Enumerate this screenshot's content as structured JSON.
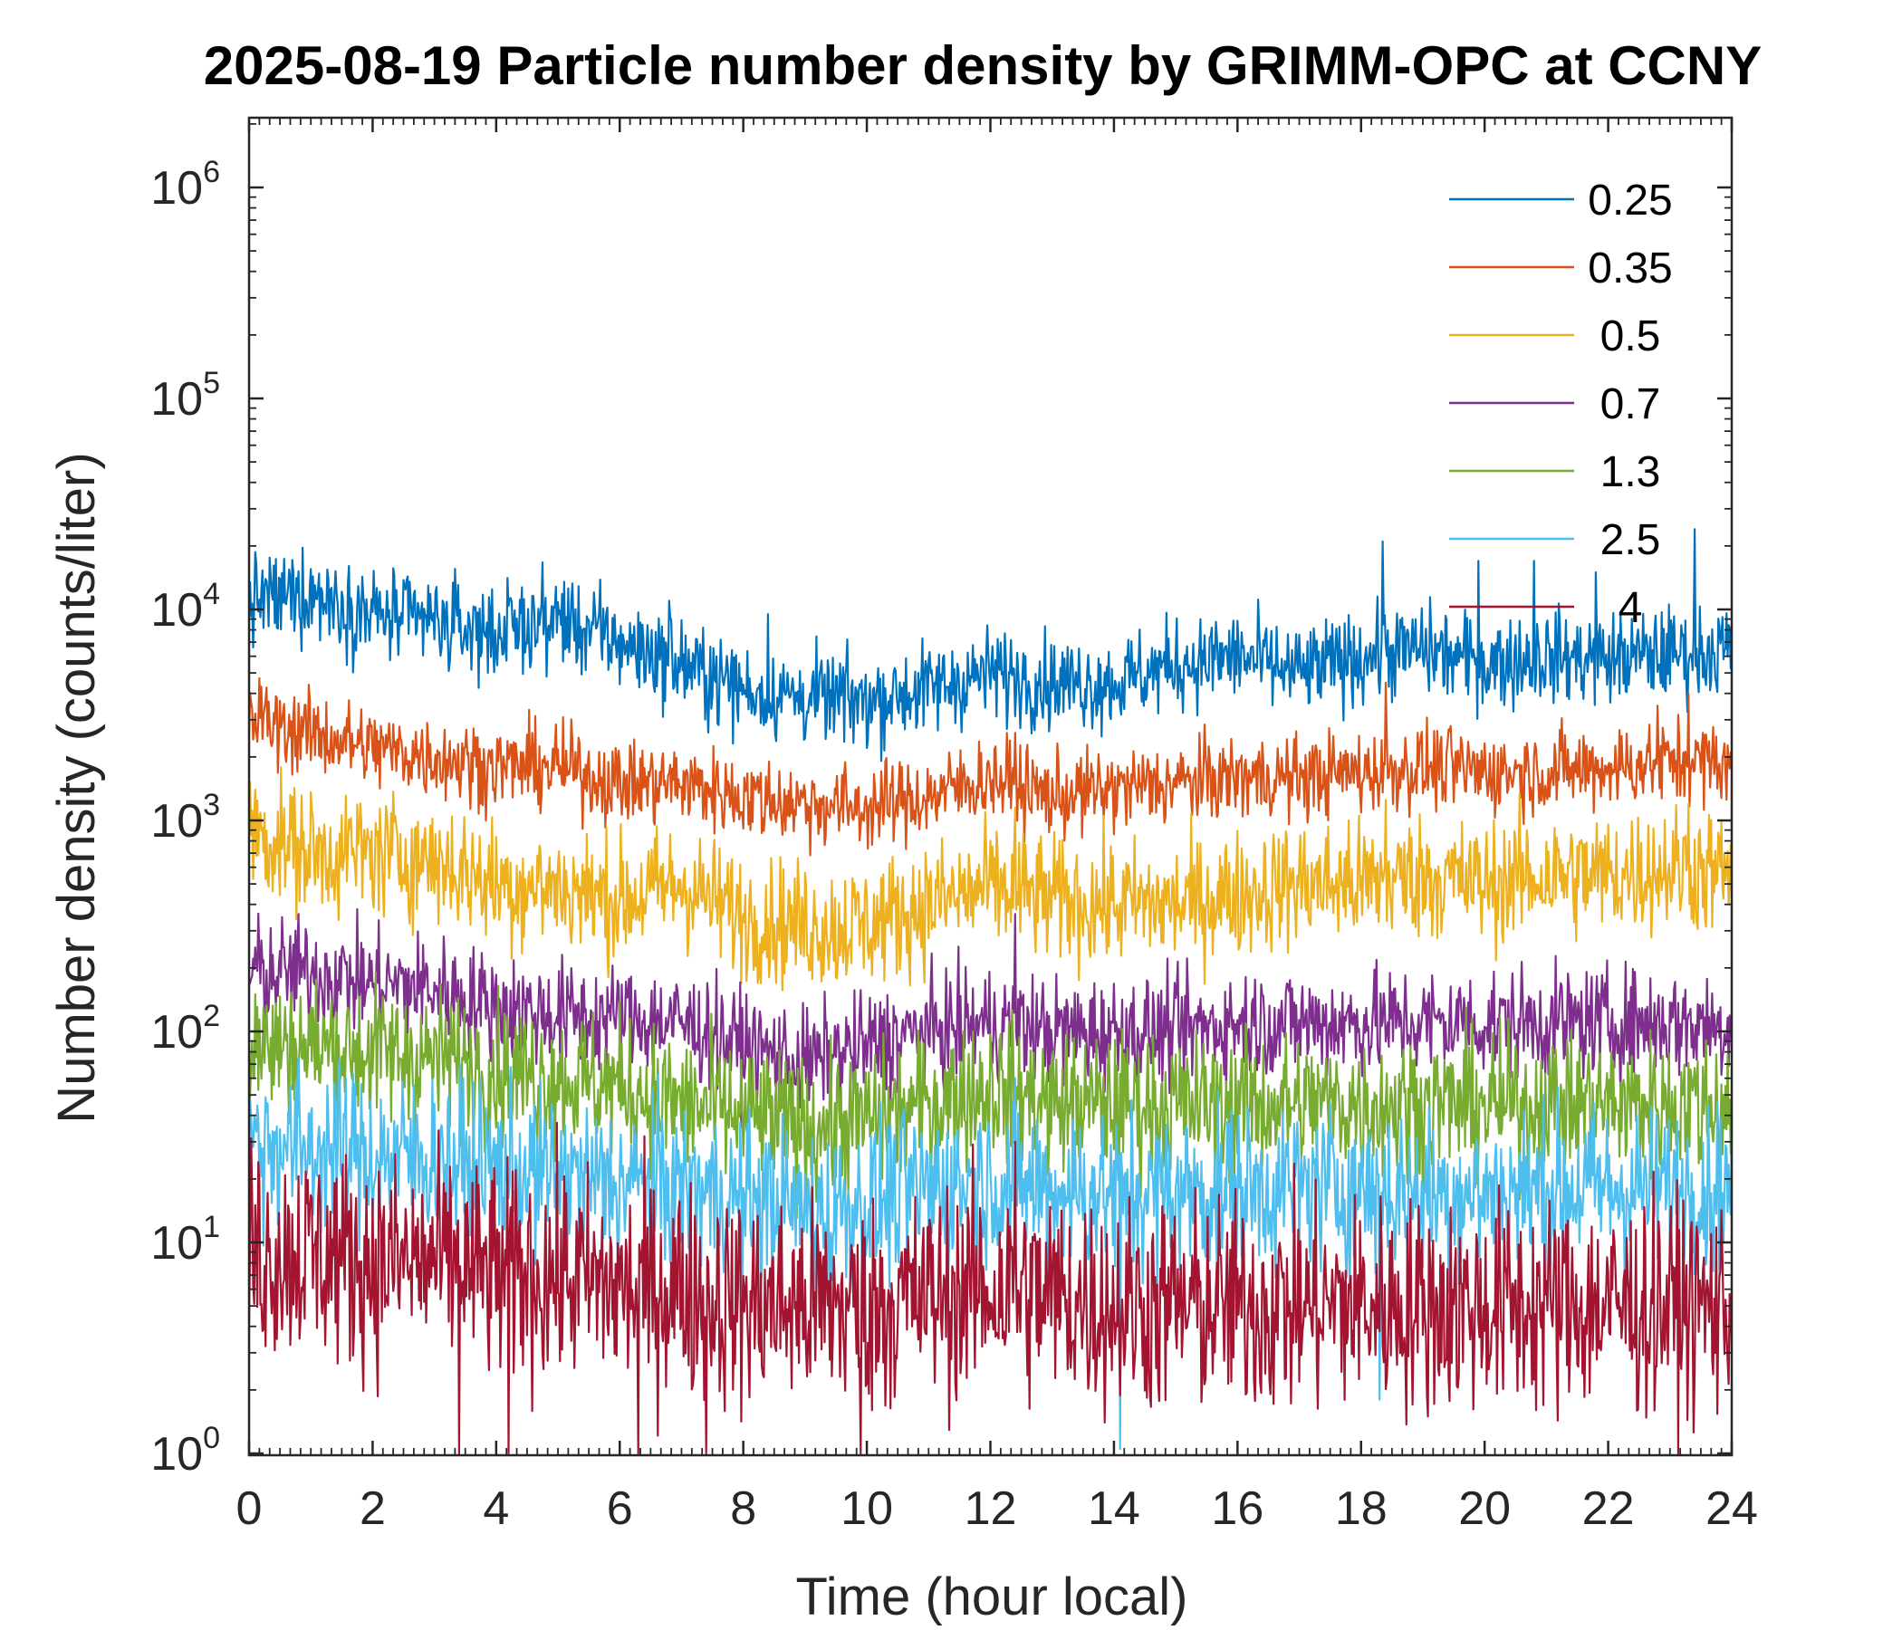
{
  "chart_data": {
    "type": "line",
    "title": "2025-08-19 Particle number density by GRIMM-OPC at CCNY",
    "xlabel": "Time (hour local)",
    "ylabel": "Number density (counts/liter)",
    "xlim": [
      0,
      24
    ],
    "ylim": [
      1,
      2000000
    ],
    "yscale": "log",
    "x_ticks": [
      0,
      2,
      4,
      6,
      8,
      10,
      12,
      14,
      16,
      18,
      20,
      22,
      24
    ],
    "y_ticks": [
      {
        "value": 1,
        "base": "10",
        "exponent": "0"
      },
      {
        "value": 10,
        "base": "10",
        "exponent": "1"
      },
      {
        "value": 100,
        "base": "10",
        "exponent": "2"
      },
      {
        "value": 1000,
        "base": "10",
        "exponent": "3"
      },
      {
        "value": 10000,
        "base": "10",
        "exponent": "4"
      },
      {
        "value": 100000,
        "base": "10",
        "exponent": "5"
      },
      {
        "value": 1000000,
        "base": "10",
        "exponent": "6"
      }
    ],
    "legend_position": "top-right",
    "x": [
      0,
      1,
      2,
      3,
      4,
      5,
      6,
      7,
      8,
      9,
      10,
      11,
      12,
      13,
      14,
      15,
      16,
      17,
      18,
      19,
      20,
      21,
      22,
      23,
      24
    ],
    "series": [
      {
        "name": "0.25",
        "color": "#0072BD",
        "values": [
          11000,
          12000,
          9500,
          8500,
          7800,
          9000,
          7000,
          5500,
          4200,
          3800,
          3700,
          4200,
          5000,
          4500,
          4500,
          5500,
          6000,
          5000,
          6000,
          6500,
          5500,
          6000,
          5800,
          6200,
          6500
        ],
        "noise": 0.11,
        "spikes": [
          [
            0.5,
            14000
          ],
          [
            2.9,
            13000
          ],
          [
            5.1,
            13500
          ],
          [
            6.8,
            11000
          ],
          [
            8.4,
            9500
          ],
          [
            15.4,
            9000
          ],
          [
            18.35,
            21000
          ],
          [
            19.9,
            17000
          ],
          [
            20.8,
            17000
          ],
          [
            21.8,
            15000
          ],
          [
            23.4,
            24000
          ]
        ]
      },
      {
        "name": "0.35",
        "color": "#D95319",
        "values": [
          3000,
          2600,
          2200,
          2000,
          1800,
          1800,
          1500,
          1500,
          1300,
          1200,
          1150,
          1300,
          1600,
          1300,
          1400,
          1500,
          1600,
          1600,
          1700,
          1800,
          1700,
          1700,
          1800,
          1900,
          1900
        ],
        "noise": 0.1,
        "spikes": [
          [
            0.2,
            4300
          ],
          [
            18.4,
            4500
          ],
          [
            22.8,
            3500
          ],
          [
            23.3,
            4000
          ],
          [
            12.4,
            2600
          ]
        ]
      },
      {
        "name": "0.5",
        "color": "#EDB120",
        "values": [
          900,
          700,
          700,
          650,
          500,
          480,
          420,
          500,
          350,
          320,
          320,
          400,
          480,
          420,
          400,
          400,
          450,
          500,
          500,
          550,
          500,
          550,
          550,
          600,
          550
        ],
        "noise": 0.15,
        "spikes": [
          [
            0.1,
            1400
          ],
          [
            12.4,
            1150
          ],
          [
            18.4,
            1250
          ],
          [
            17.8,
            1000
          ],
          [
            23.3,
            1200
          ],
          [
            9.5,
            180
          ]
        ]
      },
      {
        "name": "0.7",
        "color": "#7E2F8E",
        "values": [
          190,
          190,
          170,
          160,
          130,
          120,
          115,
          110,
          85,
          70,
          85,
          100,
          110,
          100,
          100,
          100,
          110,
          110,
          110,
          110,
          110,
          110,
          110,
          110,
          105
        ],
        "noise": 0.13,
        "spikes": [
          [
            0.2,
            270
          ],
          [
            12.4,
            360
          ]
        ]
      },
      {
        "name": "1.3",
        "color": "#77AC30",
        "values": [
          85,
          85,
          80,
          75,
          65,
          60,
          55,
          45,
          40,
          35,
          38,
          45,
          55,
          45,
          45,
          45,
          45,
          45,
          45,
          45,
          45,
          45,
          45,
          45,
          45
        ],
        "noise": 0.17,
        "spikes": [
          [
            0.1,
            150
          ]
        ]
      },
      {
        "name": "2.5",
        "color": "#4DBEEE",
        "values": [
          30,
          28,
          26,
          25,
          22,
          20,
          19,
          18,
          16,
          14,
          15,
          18,
          20,
          18,
          17,
          17,
          18,
          18,
          18,
          17,
          17,
          18,
          18,
          18,
          18
        ],
        "noise": 0.2,
        "spikes": [
          [
            14.1,
            1.05
          ],
          [
            9.4,
            3.1
          ],
          [
            18.3,
            1.8
          ]
        ]
      },
      {
        "name": "4",
        "color": "#A2142F",
        "values": [
          9,
          9,
          8,
          8,
          7,
          7,
          6,
          6,
          5,
          5,
          5,
          5.5,
          6,
          5.5,
          5,
          5,
          5,
          5,
          5,
          5,
          5,
          5,
          5,
          5,
          5
        ],
        "noise": 0.26,
        "spikes": [
          [
            3.4,
            1.0
          ],
          [
            4.2,
            1.0
          ],
          [
            6.3,
            1.0
          ],
          [
            7.4,
            1.0
          ],
          [
            9.9,
            1.0
          ],
          [
            12.4,
            30
          ]
        ]
      }
    ]
  }
}
